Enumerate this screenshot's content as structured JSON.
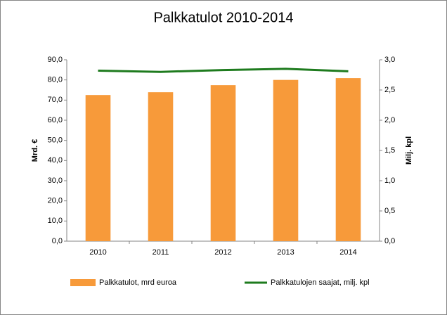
{
  "chart_data": {
    "type": "bar",
    "title": "Palkkatulot 2010-2014",
    "categories": [
      "2010",
      "2011",
      "2012",
      "2013",
      "2014"
    ],
    "series": [
      {
        "name": "Palkkatulot, mrd euroa",
        "type": "bar",
        "color": "#f79a3a",
        "values": [
          72.5,
          73.9,
          77.4,
          80.0,
          80.9
        ]
      },
      {
        "name": "Palkkatulojen saajat, milj. kpl",
        "type": "line",
        "axis": "y2",
        "color": "#1e7b1e",
        "values": [
          2.82,
          2.8,
          2.83,
          2.85,
          2.81
        ]
      }
    ],
    "y_label": "Mrd. €",
    "y2_label": "Milj. kpl",
    "ylim": [
      0,
      90
    ],
    "yticks": [
      {
        "value": 0,
        "label": "0,0"
      },
      {
        "value": 10,
        "label": "10,0"
      },
      {
        "value": 20,
        "label": "20,0"
      },
      {
        "value": 30,
        "label": "30,0"
      },
      {
        "value": 40,
        "label": "40,0"
      },
      {
        "value": 50,
        "label": "50,0"
      },
      {
        "value": 60,
        "label": "60,0"
      },
      {
        "value": 70,
        "label": "70,0"
      },
      {
        "value": 80,
        "label": "80,0"
      },
      {
        "value": 90,
        "label": "90,0"
      }
    ],
    "y2lim": [
      0,
      3
    ],
    "y2ticks": [
      {
        "value": 0,
        "label": "0,0"
      },
      {
        "value": 0.5,
        "label": "0,5"
      },
      {
        "value": 1,
        "label": "1,0"
      },
      {
        "value": 1.5,
        "label": "1,5"
      },
      {
        "value": 2,
        "label": "2,0"
      },
      {
        "value": 2.5,
        "label": "2,5"
      },
      {
        "value": 3,
        "label": "3,0"
      }
    ],
    "grid": false,
    "legend": "bottom"
  }
}
